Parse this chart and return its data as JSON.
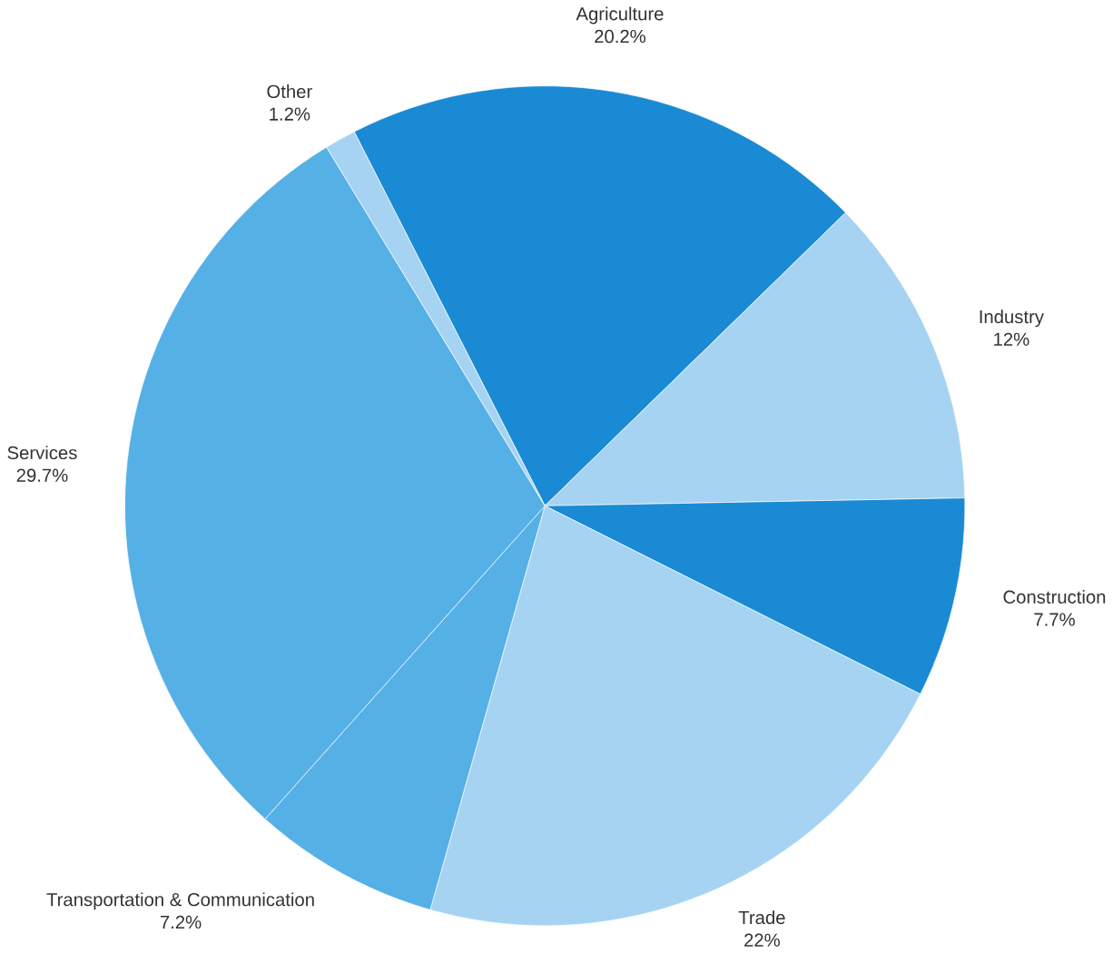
{
  "chart_data": {
    "type": "pie",
    "categories": [
      "Agriculture",
      "Industry",
      "Construction",
      "Trade",
      "Transportation & Communication",
      "Services",
      "Other"
    ],
    "values": [
      20.2,
      12,
      7.7,
      22,
      7.2,
      29.7,
      1.2
    ],
    "value_labels": [
      "20.2%",
      "12%",
      "7.7%",
      "22%",
      "7.2%",
      "29.7%",
      "1.2%"
    ],
    "colors": [
      "#1a8ad4",
      "#a6d3f2",
      "#1a8ad4",
      "#a6d3f2",
      "#55b0e6",
      "#55b0e6",
      "#a6d3f2"
    ]
  }
}
